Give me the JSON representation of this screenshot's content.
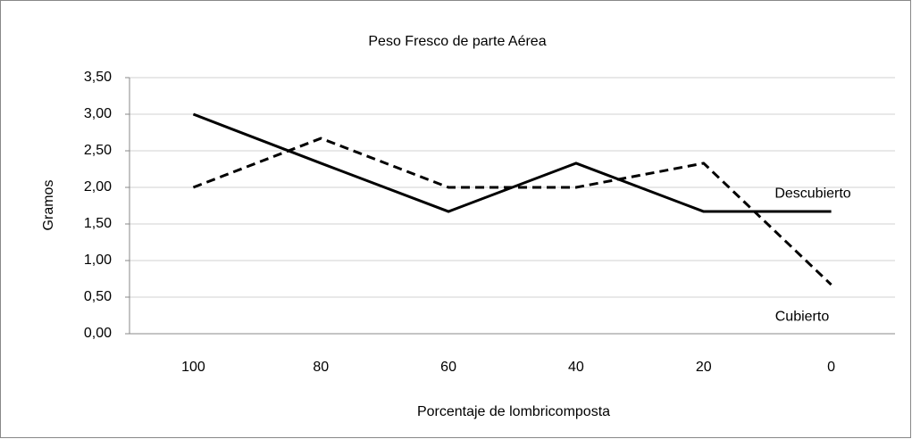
{
  "chart_data": {
    "type": "line",
    "title": "Peso Fresco de parte Aérea",
    "x_label": "Porcentaje de lombricomposta",
    "y_label": "Gramos",
    "categories": [
      "100",
      "80",
      "60",
      "40",
      "20",
      "0"
    ],
    "series": [
      {
        "name": "Descubierto",
        "color": "#000000",
        "dash": "solid",
        "values": [
          3.0,
          2.33,
          1.67,
          2.33,
          1.67,
          1.67
        ]
      },
      {
        "name": "Cubierto",
        "color": "#000000",
        "dash": "dashed",
        "values": [
          2.0,
          2.67,
          2.0,
          2.0,
          2.33,
          0.67
        ]
      }
    ],
    "ylim": [
      0,
      3.5
    ],
    "yticks": [
      {
        "value": 0,
        "label": "0,00"
      },
      {
        "value": 0.5,
        "label": "0,50"
      },
      {
        "value": 1,
        "label": "1,00"
      },
      {
        "value": 1.5,
        "label": "1,50"
      },
      {
        "value": 2,
        "label": "2,00"
      },
      {
        "value": 2.5,
        "label": "2,50"
      },
      {
        "value": 3,
        "label": "3,00"
      },
      {
        "value": 3.5,
        "label": "3,50"
      }
    ],
    "grid": true
  }
}
